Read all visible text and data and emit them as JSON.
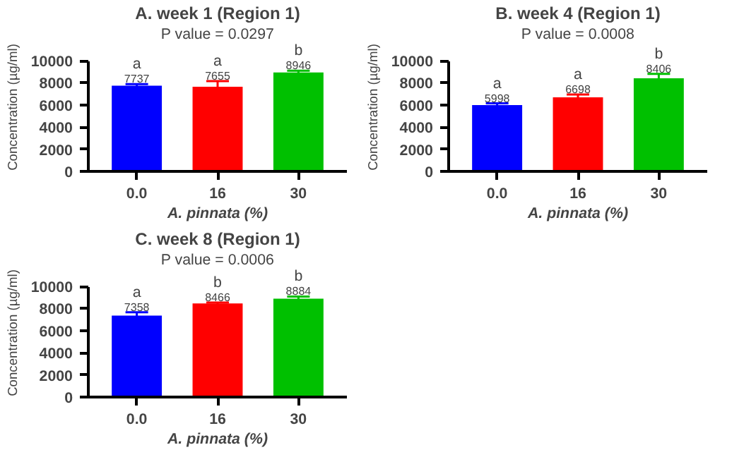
{
  "chart_data": [
    {
      "type": "bar",
      "title": "A. week 1 (Region 1)",
      "subtitle": "P value = 0.0297",
      "xlabel": "A. pinnata (%)",
      "ylabel": "Concentration (µg/ml)",
      "categories": [
        "0.0",
        "16",
        "30"
      ],
      "values": [
        7737,
        7655,
        8946
      ],
      "colors": [
        "#0000ff",
        "#ff0000",
        "#00c000"
      ],
      "errors": [
        150,
        500,
        150
      ],
      "data_labels": true,
      "ylim": [
        0,
        10000
      ],
      "yticks": [
        0,
        2000,
        4000,
        6000,
        8000,
        10000
      ],
      "grid": false,
      "annotations": [
        "a",
        "a",
        "b"
      ]
    },
    {
      "type": "bar",
      "title": "B. week 4 (Region 1)",
      "subtitle": "P value = 0.0008",
      "xlabel": "A. pinnata (%)",
      "ylabel": "Concentration (µg/ml)",
      "categories": [
        "0.0",
        "16",
        "30"
      ],
      "values": [
        5998,
        6698,
        8406
      ],
      "colors": [
        "#0000ff",
        "#ff0000",
        "#00c000"
      ],
      "errors": [
        150,
        250,
        400
      ],
      "data_labels": true,
      "ylim": [
        0,
        10000
      ],
      "yticks": [
        0,
        2000,
        4000,
        6000,
        8000,
        10000
      ],
      "grid": false,
      "annotations": [
        "a",
        "a",
        "b"
      ]
    },
    {
      "type": "bar",
      "title": "C. week 8 (Region 1)",
      "subtitle": "P value = 0.0006",
      "xlabel": "A. pinnata (%)",
      "ylabel": "Concentration (µg/ml)",
      "categories": [
        "0.0",
        "16",
        "30"
      ],
      "values": [
        7358,
        8466,
        8884
      ],
      "colors": [
        "#0000ff",
        "#ff0000",
        "#00c000"
      ],
      "errors": [
        300,
        80,
        200
      ],
      "data_labels": true,
      "ylim": [
        0,
        10000
      ],
      "yticks": [
        0,
        2000,
        4000,
        6000,
        8000,
        10000
      ],
      "grid": false,
      "annotations": [
        "a",
        "b",
        "b"
      ]
    }
  ]
}
